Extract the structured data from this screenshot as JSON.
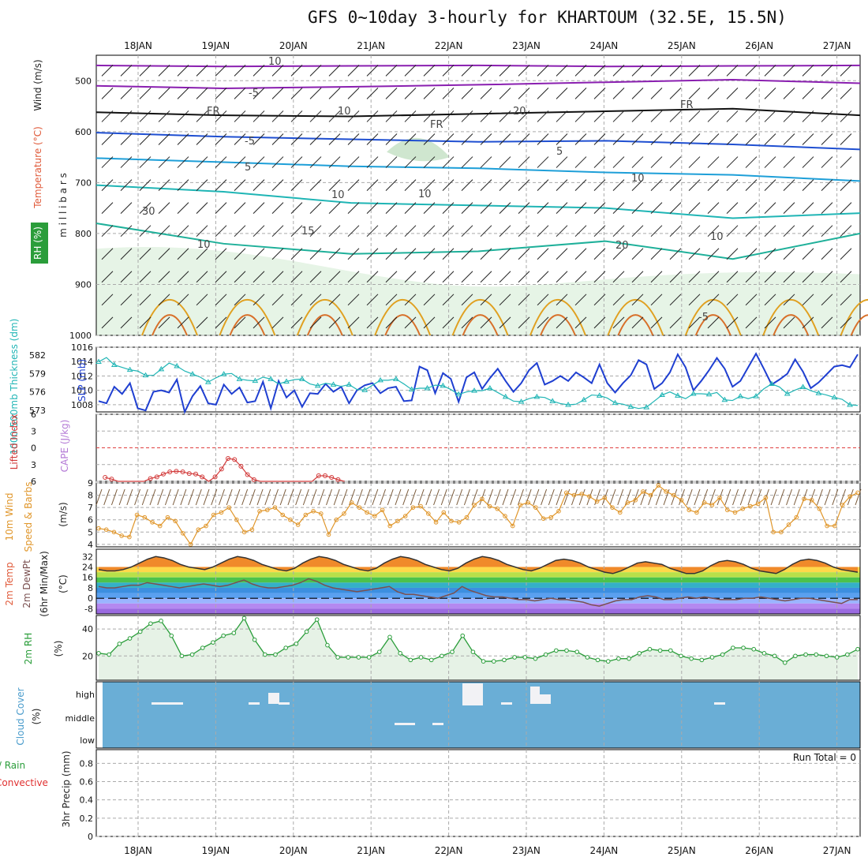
{
  "title": "GFS 0~10day 3-hourly for KHARTOUM (32.5E, 15.5N)",
  "colors": {
    "temperature": "#e05a3a",
    "wind": "#222222",
    "rh_green": "#2a9d3a",
    "slp": "#1f3fd1",
    "thickness": "#20b5b5",
    "lifted": "#d23a3a",
    "cape": "#b47ad6",
    "wind10": "#e0962a",
    "cloud_bg": "#6aaed6",
    "precip_total": "#2a9d3a",
    "precip_conv": "#e03030"
  },
  "chart_data": [
    {
      "type": "line",
      "panel": "upper-air",
      "ylabel_parts": [
        "RH (%)",
        "Temperature (°C)",
        "Wind (m/s)"
      ],
      "ylabel_right": "m i l l i b a r s",
      "ylim": [
        1000,
        450
      ],
      "yticks": [
        "500",
        "600",
        "700",
        "800",
        "900",
        "1000"
      ],
      "contour_labels": [
        "10",
        "-5",
        "FR",
        "FR",
        "FR",
        "-5",
        "5",
        "5",
        "10",
        "10",
        "15",
        "20",
        "-5",
        "20",
        "10",
        "10",
        "30",
        "10",
        "10"
      ],
      "series": [
        {
          "name": "-10",
          "values": [
            470,
            472,
            471,
            470,
            472,
            471,
            470
          ]
        },
        {
          "name": "-5",
          "values": [
            510,
            515,
            512,
            508,
            503,
            498,
            505
          ]
        },
        {
          "name": "FR",
          "values": [
            562,
            568,
            570,
            565,
            560,
            555,
            568
          ]
        },
        {
          "name": "5",
          "values": [
            602,
            610,
            615,
            620,
            618,
            625,
            635
          ]
        },
        {
          "name": "10",
          "values": [
            652,
            660,
            668,
            672,
            680,
            685,
            697
          ]
        },
        {
          "name": "15",
          "values": [
            705,
            718,
            740,
            745,
            750,
            770,
            760
          ]
        },
        {
          "name": "20",
          "values": [
            780,
            820,
            840,
            835,
            815,
            850,
            800
          ]
        }
      ]
    },
    {
      "type": "line",
      "panel": "slp-thickness",
      "left_label": "1000-500mb Thickness (dm)",
      "right_label": "SLP (mb)",
      "left_ticks": [
        "582",
        "579",
        "576",
        "573"
      ],
      "right_ticks": [
        "1016",
        "1014",
        "1012",
        "1010",
        "1008"
      ],
      "series": [
        {
          "name": "SLP",
          "values": [
            1008.5,
            1008.2,
            1010.5,
            1009.5,
            1011.0,
            1007.5,
            1007.2,
            1009.8,
            1010.0,
            1009.7,
            1011.5,
            1007.0,
            1009.2,
            1010.6,
            1008.2,
            1008.0,
            1010.8,
            1009.5,
            1010.4,
            1008.3,
            1008.5,
            1011.2,
            1007.5,
            1011.3,
            1009.0,
            1010.0,
            1007.7,
            1009.6,
            1009.5,
            1010.9,
            1009.8,
            1010.5,
            1008.2,
            1010.0,
            1010.7,
            1011.0,
            1009.6,
            1010.3,
            1010.5,
            1008.5,
            1008.6,
            1013.3,
            1012.8,
            1009.6,
            1012.4,
            1011.6,
            1008.4,
            1011.8,
            1012.5,
            1010.2,
            1011.7,
            1013.0,
            1011.3,
            1009.8,
            1011.0,
            1012.8,
            1013.8,
            1010.8,
            1011.3,
            1012.0,
            1011.3,
            1012.5,
            1011.8,
            1011.0,
            1013.6,
            1011.0,
            1009.7,
            1011.0,
            1012.1,
            1014.2,
            1013.6,
            1010.2,
            1011.0,
            1012.5,
            1015.0,
            1013.2,
            1010.0,
            1011.3,
            1012.8,
            1014.5,
            1013.0,
            1010.5,
            1011.3,
            1013.2,
            1015.1,
            1013.0,
            1010.8,
            1011.5,
            1012.3,
            1014.3,
            1012.6,
            1010.3,
            1011.1,
            1012.2,
            1013.3,
            1013.5,
            1013.2,
            1015.0
          ]
        },
        {
          "name": "Thickness",
          "values": [
            580.9,
            581.6,
            580.4,
            580.0,
            579.6,
            579.4,
            578.7,
            578.7,
            579.7,
            580.7,
            580.2,
            579.4,
            578.9,
            578.4,
            577.6,
            578.3,
            578.9,
            579.0,
            578.1,
            577.9,
            577.8,
            578.4,
            578.1,
            577.3,
            577.7,
            578.0,
            578.1,
            577.3,
            577.0,
            577.4,
            577.2,
            576.9,
            577.2,
            576.4,
            576.3,
            577.1,
            577.9,
            577.9,
            578.1,
            577.3,
            576.4,
            576.6,
            576.6,
            577.1,
            577.0,
            576.4,
            575.6,
            576.0,
            576.2,
            576.2,
            576.6,
            575.9,
            575.2,
            574.5,
            574.4,
            574.9,
            575.2,
            575.1,
            574.5,
            574.1,
            573.9,
            574.0,
            574.7,
            575.5,
            575.4,
            575.0,
            574.2,
            574.0,
            573.6,
            573.3,
            573.5,
            574.5,
            575.5,
            576.0,
            575.4,
            574.9,
            575.7,
            575.7,
            575.6,
            575.9,
            574.7,
            574.6,
            575.3,
            574.9,
            575.3,
            576.5,
            577.3,
            576.8,
            575.7,
            576.3,
            576.8,
            576.2,
            575.8,
            575.5,
            575.1,
            574.8,
            573.9,
            573.8
          ]
        }
      ]
    },
    {
      "type": "line",
      "panel": "lifted-cape",
      "left_label": "Lifted Index",
      "right_label": "CAPE (J/kg)",
      "yticks": [
        "-6",
        "-3",
        "0",
        "3",
        "6"
      ],
      "series": [
        {
          "name": "Lifted Index",
          "values": [
            null,
            5.3,
            5.6,
            6.0,
            6.0,
            6.0,
            6.0,
            6.0,
            5.5,
            5.2,
            4.7,
            4.3,
            4.2,
            4.3,
            4.6,
            4.7,
            5.2,
            6.0,
            5.2,
            3.8,
            1.9,
            2.1,
            3.3,
            4.8,
            5.7,
            6.0,
            6.0,
            6.0,
            6.0,
            6.0,
            6.0,
            6.0,
            6.0,
            6.0,
            5.0,
            5.0,
            5.3,
            5.7,
            6.0
          ]
        }
      ]
    },
    {
      "type": "line",
      "panel": "wind10",
      "left_label": "10m Wind Speed & Barbs",
      "unit": "(m/s)",
      "yticks": [
        "9",
        "8",
        "7",
        "6",
        "5",
        "4"
      ],
      "series": [
        {
          "name": "10m Wind Speed",
          "values": [
            5.3,
            5.2,
            5.0,
            4.7,
            4.6,
            6.4,
            6.2,
            5.8,
            5.5,
            6.2,
            5.9,
            4.9,
            4.0,
            5.2,
            5.5,
            6.4,
            6.6,
            7.0,
            6.0,
            5.0,
            5.2,
            6.7,
            6.8,
            7.0,
            6.4,
            6.0,
            5.6,
            6.4,
            6.7,
            6.5,
            4.8,
            6.0,
            6.5,
            7.4,
            7.0,
            6.6,
            6.3,
            6.8,
            5.5,
            5.9,
            6.3,
            7.0,
            7.1,
            6.5,
            5.8,
            6.6,
            5.9,
            5.8,
            6.2,
            7.2,
            7.7,
            7.1,
            6.9,
            6.3,
            5.5,
            7.2,
            7.4,
            7.0,
            6.1,
            6.2,
            6.7,
            8.2,
            8.0,
            8.1,
            7.9,
            7.5,
            7.8,
            7.0,
            6.6,
            7.4,
            7.6,
            8.3,
            8.0,
            8.8,
            8.3,
            8.0,
            7.6,
            6.8,
            6.6,
            7.4,
            7.2,
            7.8,
            6.8,
            6.6,
            6.9,
            7.1,
            7.3,
            7.8,
            5.0,
            5.0,
            5.6,
            6.2,
            7.7,
            7.6,
            6.9,
            5.5,
            5.5,
            7.2,
            7.9,
            8.2
          ]
        }
      ]
    },
    {
      "type": "line",
      "panel": "temp2m",
      "left_label": "2m Temp 2m DewPt (6hr Min/Max)",
      "unit": "(°C)",
      "yticks": [
        "32",
        "24",
        "16",
        "8",
        "0",
        "-8"
      ],
      "series": [
        {
          "name": "2m Temp",
          "values": [
            22.0,
            21.0,
            21.0,
            22.0,
            24.0,
            27.0,
            30.0,
            32.0,
            31.0,
            29.0,
            26.0,
            24.0,
            23.0,
            22.0,
            24.0,
            27.0,
            30.0,
            32.0,
            31.0,
            29.0,
            26.0,
            24.0,
            22.0,
            21.0,
            23.0,
            27.0,
            30.0,
            32.0,
            31.0,
            29.0,
            26.0,
            24.0,
            22.0,
            21.0,
            23.0,
            27.0,
            30.0,
            32.0,
            31.0,
            29.0,
            26.0,
            24.0,
            22.0,
            21.0,
            23.0,
            27.0,
            30.0,
            32.0,
            31.0,
            29.0,
            26.0,
            24.0,
            22.0,
            21.0,
            23.0,
            26.0,
            29.0,
            30.0,
            29.0,
            27.0,
            24.0,
            22.0,
            20.0,
            19.0,
            21.0,
            24.0,
            27.0,
            28.0,
            27.0,
            26.0,
            23.0,
            21.0,
            19.0,
            19.0,
            21.0,
            25.0,
            28.0,
            29.0,
            28.0,
            26.0,
            23.0,
            21.0,
            20.0,
            19.0,
            22.0,
            26.0,
            29.0,
            30.0,
            29.0,
            27.0,
            24.0,
            22.0,
            21.0,
            20.0
          ]
        },
        {
          "name": "2m DewPt",
          "values": [
            9.0,
            8.0,
            8.0,
            9.0,
            10.0,
            10.0,
            12.0,
            11.0,
            10.0,
            9.0,
            8.0,
            9.0,
            10.0,
            11.0,
            10.0,
            9.0,
            10.0,
            12.0,
            14.0,
            11.0,
            9.0,
            8.0,
            8.0,
            9.0,
            10.0,
            12.0,
            15.0,
            13.0,
            10.0,
            8.0,
            7.0,
            6.0,
            5.0,
            6.0,
            7.0,
            8.0,
            9.0,
            5.0,
            3.0,
            3.0,
            2.0,
            1.0,
            0.0,
            2.0,
            4.0,
            9.0,
            6.0,
            4.0,
            2.0,
            1.0,
            1.0,
            0.0,
            -1.0,
            -1.0,
            -2.0,
            -1.0,
            0.0,
            -1.0,
            -1.0,
            -2.0,
            -3.0,
            -5.0,
            -6.0,
            -4.0,
            -2.0,
            -1.0,
            -1.0,
            1.0,
            2.0,
            1.0,
            -1.0,
            -1.0,
            0.0,
            1.0,
            0.0,
            1.0,
            0.0,
            -1.0,
            -1.0,
            -1.0,
            0.0,
            0.0,
            1.0,
            0.0,
            -1.0,
            -2.0,
            -1.0,
            0.0,
            0.0,
            -1.0,
            -2.0,
            -3.0,
            -4.0,
            -1.0,
            -1.0
          ]
        }
      ]
    },
    {
      "type": "area",
      "panel": "rh2m",
      "left_label": "2m RH",
      "unit": "(%)",
      "yticks": [
        "40",
        "20"
      ],
      "series": [
        {
          "name": "2m RH",
          "values": [
            22,
            21,
            29,
            33,
            38,
            44,
            46,
            35,
            20,
            21,
            26,
            30,
            35,
            37,
            48,
            32,
            21,
            21,
            26,
            29,
            38,
            47,
            28,
            19,
            19,
            19,
            19,
            23,
            34,
            22,
            17,
            19,
            17,
            20,
            23,
            35,
            23,
            16,
            16,
            17,
            19,
            19,
            18,
            21,
            24,
            24,
            23,
            19,
            17,
            16,
            18,
            18,
            22,
            25,
            24,
            24,
            20,
            18,
            17,
            19,
            21,
            26,
            26,
            25,
            22,
            20,
            15,
            20,
            21,
            21,
            20,
            19,
            21,
            25
          ]
        }
      ]
    },
    {
      "type": "bar",
      "panel": "cloud",
      "left_label": "Cloud Cover",
      "unit": "(%)",
      "yticks": [
        "high",
        "middle",
        "low"
      ]
    },
    {
      "type": "bar",
      "panel": "precip",
      "left_label_parts": [
        "Total / Rain",
        "Convective"
      ],
      "ylabel": "3hr Precip (mm)",
      "yticks": [
        "0.8",
        "0.6",
        "0.4",
        "0.2",
        "0"
      ],
      "annotation": "Run Total = 0",
      "values": []
    }
  ],
  "dates": [
    "18JAN",
    "19JAN",
    "20JAN",
    "21JAN",
    "22JAN",
    "23JAN",
    "24JAN",
    "25JAN",
    "26JAN",
    "27JAN"
  ]
}
